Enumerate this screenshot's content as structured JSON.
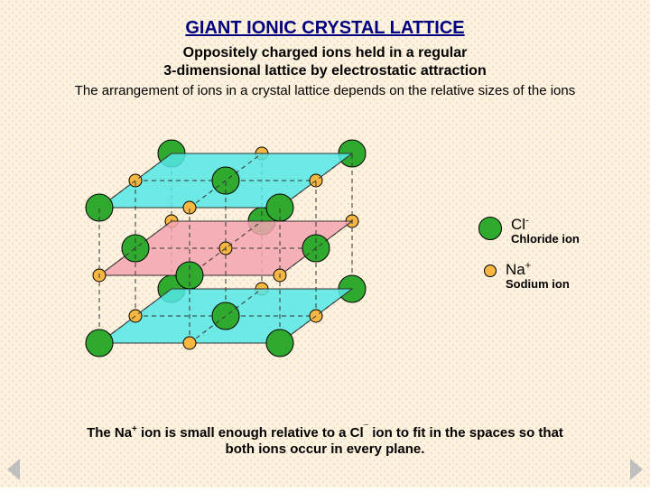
{
  "background": {
    "base": "#fdf2df",
    "dot": "#f0d8b4"
  },
  "title": {
    "text": "GIANT IONIC CRYSTAL LATTICE",
    "color": "#000080",
    "fontsize": 20
  },
  "subtitle": {
    "line1": "Oppositely charged ions held in a regular",
    "line2": "3-dimensional lattice by electrostatic attraction",
    "fontsize": 16
  },
  "desc": {
    "text": "The arrangement of ions in a crystal lattice depends on the relative sizes of the ions",
    "fontsize": 15
  },
  "lattice": {
    "nx": 3,
    "ny": 3,
    "nz": 3,
    "sx": 100,
    "sy": 75,
    "depth_dx": 40,
    "depth_dy": -30,
    "cl_radius": 15,
    "na_radius": 7,
    "cl_color": "#2faa2f",
    "na_color": "#f5b642",
    "plane_colors": [
      "#54e8e8",
      "#f5a5b0",
      "#54e8e8"
    ],
    "plane_opacity": 0.85,
    "edge_color": "#333333",
    "edge_dash": "5,4"
  },
  "legend": {
    "cl": {
      "symbol": "Cl",
      "super": "-",
      "label": "Chloride ion",
      "color": "#2faa2f",
      "size": 26
    },
    "na": {
      "symbol": "Na",
      "super": "+",
      "label": "Sodium ion",
      "color": "#f5b642",
      "size": 14
    }
  },
  "caption": {
    "pre": "The Na",
    "sup1": "+",
    "mid": " ion is small enough relative to a Cl",
    "sup2": "¯",
    "post": " ion to fit in the spaces so that both ions occur in every plane."
  },
  "nav": {
    "color": "#bfbfbf",
    "size": 14
  }
}
